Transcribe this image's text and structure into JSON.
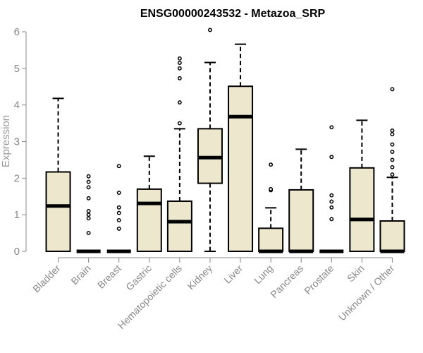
{
  "chart_data": {
    "type": "box",
    "title": "ENSG00000243532 - Metazoa_SRP",
    "xlabel": "",
    "ylabel": "Expression",
    "ylim": [
      0,
      6
    ],
    "yticks": [
      0,
      1,
      2,
      3,
      4,
      5,
      6
    ],
    "box_color": "#ede7cd",
    "categories": [
      "Bladder",
      "Brain",
      "Breast",
      "Gastric",
      "Hematopoietic cells",
      "Kidney",
      "Liver",
      "Lung",
      "Pancreas",
      "Prostate",
      "Skin",
      "Unknown / Other"
    ],
    "boxes": [
      {
        "q1": 0.0,
        "median": 1.24,
        "q3": 2.17,
        "whisker_low": 0.0,
        "whisker_high": 4.18,
        "outliers": []
      },
      {
        "q1": 0.0,
        "median": 0.0,
        "q3": 0.0,
        "whisker_low": 0.0,
        "whisker_high": 0.0,
        "outliers": [
          0.5,
          0.9,
          1.0,
          1.1,
          1.45,
          1.75,
          1.9,
          2.05
        ]
      },
      {
        "q1": 0.0,
        "median": 0.0,
        "q3": 0.0,
        "whisker_low": 0.0,
        "whisker_high": 0.0,
        "outliers": [
          0.62,
          0.85,
          1.05,
          1.2,
          1.6,
          2.33
        ]
      },
      {
        "q1": 0.0,
        "median": 1.31,
        "q3": 1.7,
        "whisker_low": 0.0,
        "whisker_high": 2.6,
        "outliers": []
      },
      {
        "q1": 0.0,
        "median": 0.81,
        "q3": 1.37,
        "whisker_low": 0.0,
        "whisker_high": 3.35,
        "outliers": [
          3.5,
          4.07,
          4.73,
          5.0,
          5.15,
          5.27
        ]
      },
      {
        "q1": 1.86,
        "median": 2.56,
        "q3": 3.35,
        "whisker_low": 0.0,
        "whisker_high": 5.16,
        "outliers": [
          6.05
        ]
      },
      {
        "q1": 0.0,
        "median": 3.68,
        "q3": 4.51,
        "whisker_low": 0.0,
        "whisker_high": 5.66,
        "outliers": []
      },
      {
        "q1": 0.0,
        "median": 0.0,
        "q3": 0.63,
        "whisker_low": 0.0,
        "whisker_high": 1.19,
        "outliers": [
          1.67,
          1.7,
          2.37
        ]
      },
      {
        "q1": 0.0,
        "median": 0.0,
        "q3": 1.68,
        "whisker_low": 0.0,
        "whisker_high": 2.79,
        "outliers": []
      },
      {
        "q1": 0.0,
        "median": 0.0,
        "q3": 0.0,
        "whisker_low": 0.0,
        "whisker_high": 0.0,
        "outliers": [
          0.88,
          1.2,
          1.36,
          1.53,
          2.58,
          3.39
        ]
      },
      {
        "q1": 0.0,
        "median": 0.87,
        "q3": 2.28,
        "whisker_low": 0.0,
        "whisker_high": 3.58,
        "outliers": []
      },
      {
        "q1": 0.0,
        "median": 0.0,
        "q3": 0.83,
        "whisker_low": 0.0,
        "whisker_high": 2.02,
        "outliers": [
          2.1,
          2.3,
          2.5,
          2.72,
          2.92,
          3.2,
          3.3,
          4.43
        ]
      }
    ]
  }
}
